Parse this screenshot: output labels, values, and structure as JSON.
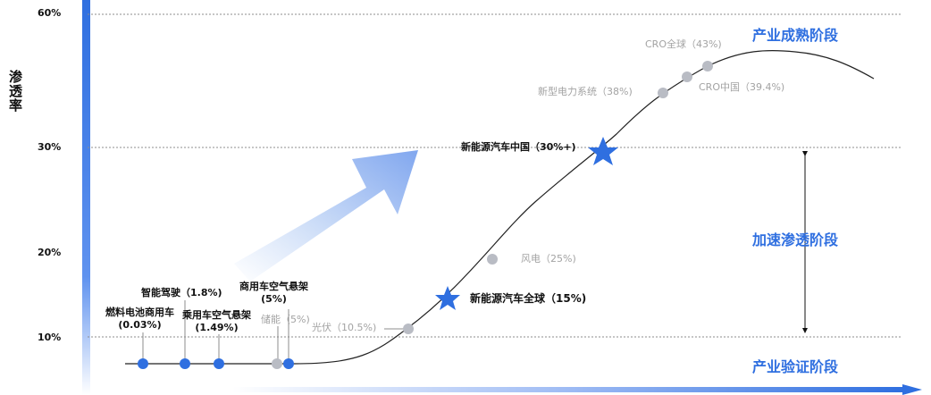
{
  "y_axis": {
    "label": "渗透率",
    "ticks": [
      "60%",
      "30%",
      "20%",
      "10%"
    ]
  },
  "stages": {
    "mature": "产业成熟阶段",
    "accelerate": "加速渗透阶段",
    "verify": "产业验证阶段"
  },
  "points": [
    {
      "key": "fuel_cell",
      "label": "燃料电池商用车",
      "value": "(0.03%)",
      "style": "blue-dot"
    },
    {
      "key": "auto_drive",
      "label": "智能驾驶（1.8%)",
      "style": "blue-dot"
    },
    {
      "key": "passenger_air",
      "label": "乘用车空气悬架",
      "value": "(1.49%)",
      "style": "blue-dot"
    },
    {
      "key": "storage",
      "label": "储能（5%)",
      "style": "grey-dot"
    },
    {
      "key": "commercial_air",
      "label": "商用车空气悬架",
      "value": "(5%)",
      "style": "blue-dot"
    },
    {
      "key": "pv",
      "label": "光伏（10.5%)",
      "style": "grey-dot"
    },
    {
      "key": "nev_global",
      "label": "新能源汽车全球（15%)",
      "style": "blue-star"
    },
    {
      "key": "wind",
      "label": "风电（25%)",
      "style": "grey-dot"
    },
    {
      "key": "nev_china",
      "label": "新能源汽车中国（30%+)",
      "style": "blue-star"
    },
    {
      "key": "new_power",
      "label": "新型电力系统（38%)",
      "style": "grey-dot"
    },
    {
      "key": "cro_china",
      "label": "CRO中国（39.4%)",
      "style": "grey-dot"
    },
    {
      "key": "cro_global",
      "label": "CRO全球（43%)",
      "style": "grey-dot"
    }
  ],
  "colors": {
    "blue": "#2f6fe0",
    "grey_dot": "#b9bcc4",
    "grid": "#8c8c8c",
    "curve": "#222222"
  }
}
